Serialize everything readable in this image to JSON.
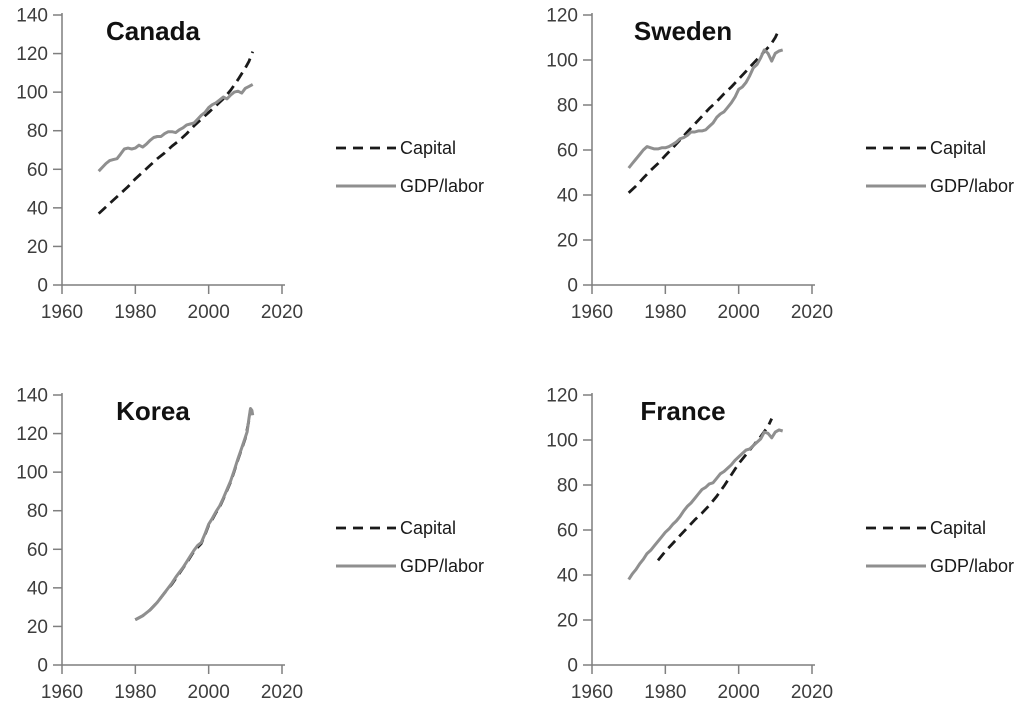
{
  "colors": {
    "capital": "#1a1a1a",
    "gdp_labor": "#8f8f8f",
    "axis": "#7f7f7f",
    "tick_text": "#3d3d3d",
    "title_text": "#111111",
    "background": "#ffffff"
  },
  "chart_data": [
    {
      "type": "line",
      "title": "Canada",
      "xlim": [
        1960,
        2020
      ],
      "ylim": [
        0,
        140
      ],
      "xticks": [
        1960,
        1980,
        2000,
        2020
      ],
      "ytick_step": 20,
      "grid": false,
      "legend_position": "right",
      "series": [
        {
          "name": "Capital",
          "style": "dashed",
          "color": "#1a1a1a",
          "points": [
            [
              1970,
              37
            ],
            [
              1972,
              40.5
            ],
            [
              1974,
              44
            ],
            [
              1976,
              47.5
            ],
            [
              1978,
              51
            ],
            [
              1980,
              55
            ],
            [
              1982,
              58.5
            ],
            [
              1984,
              62
            ],
            [
              1986,
              65.5
            ],
            [
              1988,
              68.5
            ],
            [
              1990,
              72
            ],
            [
              1992,
              75
            ],
            [
              1994,
              78.5
            ],
            [
              1996,
              82.5
            ],
            [
              1998,
              86
            ],
            [
              2000,
              89.5
            ],
            [
              2002,
              93
            ],
            [
              2004,
              96.5
            ],
            [
              2006,
              101
            ],
            [
              2008,
              106.5
            ],
            [
              2010,
              112.5
            ],
            [
              2011,
              116
            ],
            [
              2012,
              121
            ]
          ]
        },
        {
          "name": "GDP/labor",
          "style": "solid",
          "color": "#8f8f8f",
          "points": [
            [
              1970,
              59
            ],
            [
              1971,
              61
            ],
            [
              1972,
              63
            ],
            [
              1973,
              64.5
            ],
            [
              1974,
              65
            ],
            [
              1975,
              65.5
            ],
            [
              1976,
              68
            ],
            [
              1977,
              70.5
            ],
            [
              1978,
              71
            ],
            [
              1979,
              70.5
            ],
            [
              1980,
              71
            ],
            [
              1981,
              72.5
            ],
            [
              1982,
              71.5
            ],
            [
              1983,
              73
            ],
            [
              1984,
              75
            ],
            [
              1985,
              76.5
            ],
            [
              1986,
              77
            ],
            [
              1987,
              77
            ],
            [
              1988,
              78.5
            ],
            [
              1989,
              79.5
            ],
            [
              1990,
              79.5
            ],
            [
              1991,
              79
            ],
            [
              1992,
              80.5
            ],
            [
              1993,
              81.5
            ],
            [
              1994,
              83
            ],
            [
              1995,
              83.5
            ],
            [
              1996,
              84
            ],
            [
              1997,
              86
            ],
            [
              1998,
              88
            ],
            [
              1999,
              89.5
            ],
            [
              2000,
              92
            ],
            [
              2001,
              93.5
            ],
            [
              2002,
              94.5
            ],
            [
              2003,
              96
            ],
            [
              2004,
              97.5
            ],
            [
              2005,
              96.5
            ],
            [
              2006,
              98.5
            ],
            [
              2007,
              100
            ],
            [
              2008,
              100.5
            ],
            [
              2009,
              99.5
            ],
            [
              2010,
              102
            ],
            [
              2011,
              103
            ],
            [
              2012,
              104
            ]
          ]
        }
      ]
    },
    {
      "type": "line",
      "title": "Sweden",
      "xlim": [
        1960,
        2020
      ],
      "ylim": [
        0,
        120
      ],
      "xticks": [
        1960,
        1980,
        2000,
        2020
      ],
      "ytick_step": 20,
      "grid": false,
      "legend_position": "right",
      "series": [
        {
          "name": "Capital",
          "style": "dashed",
          "color": "#1a1a1a",
          "points": [
            [
              1970,
              41
            ],
            [
              1972,
              44
            ],
            [
              1974,
              47.5
            ],
            [
              1976,
              51
            ],
            [
              1978,
              54
            ],
            [
              1980,
              57.5
            ],
            [
              1982,
              61
            ],
            [
              1984,
              64.5
            ],
            [
              1986,
              68
            ],
            [
              1988,
              71.5
            ],
            [
              1990,
              75
            ],
            [
              1992,
              78.5
            ],
            [
              1994,
              81.5
            ],
            [
              1996,
              85
            ],
            [
              1998,
              88
            ],
            [
              2000,
              91.5
            ],
            [
              2002,
              95
            ],
            [
              2004,
              98.5
            ],
            [
              2006,
              102
            ],
            [
              2008,
              105.5
            ],
            [
              2009,
              107.5
            ],
            [
              2010,
              110
            ],
            [
              2011,
              113.5
            ]
          ]
        },
        {
          "name": "GDP/labor",
          "style": "solid",
          "color": "#8f8f8f",
          "points": [
            [
              1970,
              52
            ],
            [
              1971,
              54
            ],
            [
              1972,
              56
            ],
            [
              1973,
              58
            ],
            [
              1974,
              60
            ],
            [
              1975,
              61.5
            ],
            [
              1976,
              61
            ],
            [
              1977,
              60.5
            ],
            [
              1978,
              60.5
            ],
            [
              1979,
              61
            ],
            [
              1980,
              61
            ],
            [
              1981,
              61.5
            ],
            [
              1982,
              62.5
            ],
            [
              1983,
              63.5
            ],
            [
              1984,
              65
            ],
            [
              1985,
              65.5
            ],
            [
              1986,
              66.5
            ],
            [
              1987,
              68
            ],
            [
              1988,
              68
            ],
            [
              1989,
              68.5
            ],
            [
              1990,
              68.5
            ],
            [
              1991,
              69
            ],
            [
              1992,
              70.5
            ],
            [
              1993,
              72
            ],
            [
              1994,
              74.5
            ],
            [
              1995,
              76
            ],
            [
              1996,
              77
            ],
            [
              1997,
              79
            ],
            [
              1998,
              81
            ],
            [
              1999,
              83.5
            ],
            [
              2000,
              87
            ],
            [
              2001,
              88
            ],
            [
              2002,
              90
            ],
            [
              2003,
              93
            ],
            [
              2004,
              96.5
            ],
            [
              2005,
              98
            ],
            [
              2006,
              101
            ],
            [
              2007,
              104.5
            ],
            [
              2008,
              103
            ],
            [
              2009,
              99.5
            ],
            [
              2010,
              103
            ],
            [
              2011,
              104
            ],
            [
              2012,
              104.5
            ]
          ]
        }
      ]
    },
    {
      "type": "line",
      "title": "Korea",
      "xlim": [
        1960,
        2020
      ],
      "ylim": [
        0,
        140
      ],
      "xticks": [
        1960,
        1980,
        2000,
        2020
      ],
      "ytick_step": 20,
      "grid": false,
      "legend_position": "right",
      "series": [
        {
          "name": "Capital",
          "style": "dashed",
          "color": "#1a1a1a",
          "points": [
            [
              1980,
              23.5
            ],
            [
              1982,
              25.5
            ],
            [
              1984,
              28.5
            ],
            [
              1986,
              32.5
            ],
            [
              1988,
              37.5
            ],
            [
              1990,
              42
            ],
            [
              1992,
              47.5
            ],
            [
              1994,
              53
            ],
            [
              1996,
              59
            ],
            [
              1998,
              63
            ],
            [
              1999,
              67.5
            ],
            [
              2000,
              72.5
            ],
            [
              2001,
              75.5
            ],
            [
              2002,
              79
            ],
            [
              2003,
              82
            ],
            [
              2004,
              86
            ],
            [
              2005,
              90.5
            ],
            [
              2006,
              95
            ],
            [
              2007,
              100.5
            ],
            [
              2008,
              106.5
            ],
            [
              2009,
              112
            ],
            [
              2010,
              117.5
            ],
            [
              2011,
              127
            ],
            [
              2011.4,
              132.5
            ],
            [
              2012,
              129
            ]
          ]
        },
        {
          "name": "GDP/labor",
          "style": "solid",
          "color": "#8f8f8f",
          "points": [
            [
              1980,
              23.5
            ],
            [
              1981,
              24.5
            ],
            [
              1982,
              25.5
            ],
            [
              1983,
              27
            ],
            [
              1984,
              28.5
            ],
            [
              1985,
              30.5
            ],
            [
              1986,
              32.5
            ],
            [
              1987,
              35
            ],
            [
              1988,
              37.5
            ],
            [
              1989,
              40
            ],
            [
              1990,
              42.5
            ],
            [
              1991,
              45.5
            ],
            [
              1992,
              48
            ],
            [
              1993,
              50.5
            ],
            [
              1994,
              53.5
            ],
            [
              1995,
              56.5
            ],
            [
              1996,
              59.5
            ],
            [
              1997,
              62
            ],
            [
              1998,
              63.5
            ],
            [
              1999,
              68
            ],
            [
              2000,
              73
            ],
            [
              2001,
              76
            ],
            [
              2002,
              79.5
            ],
            [
              2003,
              82.5
            ],
            [
              2004,
              86.5
            ],
            [
              2005,
              91
            ],
            [
              2006,
              95.5
            ],
            [
              2007,
              101
            ],
            [
              2008,
              107
            ],
            [
              2009,
              112.5
            ],
            [
              2010,
              118
            ],
            [
              2010.5,
              121
            ],
            [
              2011,
              128
            ],
            [
              2011.4,
              133
            ],
            [
              2011.8,
              132
            ],
            [
              2012,
              129.5
            ]
          ]
        }
      ]
    },
    {
      "type": "line",
      "title": "France",
      "xlim": [
        1960,
        2020
      ],
      "ylim": [
        0,
        120
      ],
      "xticks": [
        1960,
        1980,
        2000,
        2020
      ],
      "ytick_step": 20,
      "grid": false,
      "legend_position": "right",
      "series": [
        {
          "name": "Capital",
          "style": "dashed",
          "color": "#1a1a1a",
          "points": [
            [
              1978,
              46.5
            ],
            [
              1980,
              50.5
            ],
            [
              1982,
              54
            ],
            [
              1984,
              57.5
            ],
            [
              1986,
              61
            ],
            [
              1988,
              64.5
            ],
            [
              1990,
              67.5
            ],
            [
              1992,
              71
            ],
            [
              1994,
              75
            ],
            [
              1996,
              79.5
            ],
            [
              1998,
              84.5
            ],
            [
              2000,
              89.5
            ],
            [
              2002,
              93.5
            ],
            [
              2004,
              97.5
            ],
            [
              2006,
              101.5
            ],
            [
              2008,
              106
            ],
            [
              2009,
              109.5
            ]
          ]
        },
        {
          "name": "GDP/labor",
          "style": "solid",
          "color": "#8f8f8f",
          "points": [
            [
              1970,
              38
            ],
            [
              1971,
              40.5
            ],
            [
              1972,
              42.5
            ],
            [
              1973,
              45
            ],
            [
              1974,
              47
            ],
            [
              1975,
              49.5
            ],
            [
              1976,
              51
            ],
            [
              1977,
              53
            ],
            [
              1978,
              55
            ],
            [
              1979,
              57
            ],
            [
              1980,
              59
            ],
            [
              1981,
              60.5
            ],
            [
              1982,
              62.5
            ],
            [
              1983,
              64
            ],
            [
              1984,
              66
            ],
            [
              1985,
              68.5
            ],
            [
              1986,
              70.5
            ],
            [
              1987,
              72
            ],
            [
              1988,
              74
            ],
            [
              1989,
              76
            ],
            [
              1990,
              78
            ],
            [
              1991,
              79
            ],
            [
              1992,
              80.5
            ],
            [
              1993,
              81
            ],
            [
              1994,
              83
            ],
            [
              1995,
              85
            ],
            [
              1996,
              86
            ],
            [
              1997,
              87.5
            ],
            [
              1998,
              89
            ],
            [
              1999,
              91
            ],
            [
              2000,
              92.5
            ],
            [
              2001,
              94
            ],
            [
              2002,
              95.5
            ],
            [
              2003,
              96
            ],
            [
              2004,
              97.5
            ],
            [
              2005,
              99
            ],
            [
              2006,
              100.5
            ],
            [
              2007,
              103.5
            ],
            [
              2008,
              103
            ],
            [
              2009,
              101
            ],
            [
              2010,
              103.5
            ],
            [
              2011,
              104.5
            ],
            [
              2012,
              104
            ]
          ]
        }
      ]
    }
  ]
}
